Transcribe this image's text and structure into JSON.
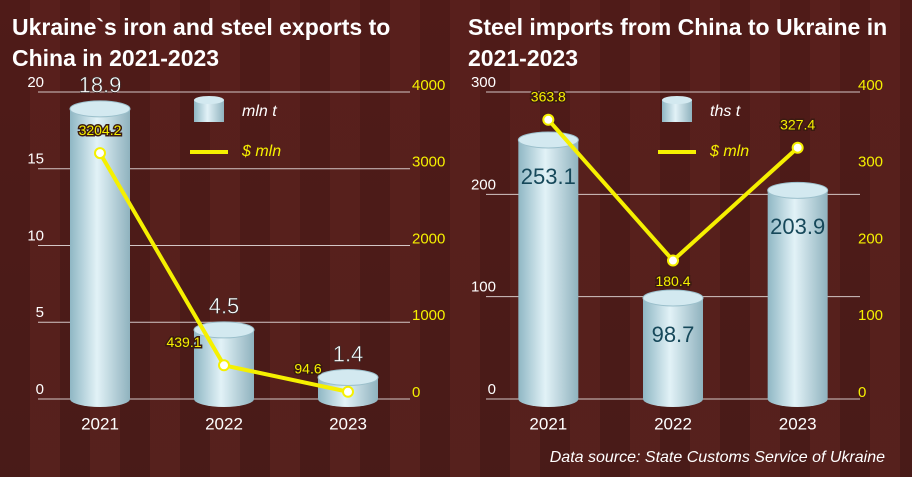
{
  "chart_data": [
    {
      "type": "bar",
      "title": "Ukraine`s iron and steel exports to China in 2021-2023",
      "categories": [
        "2021",
        "2022",
        "2023"
      ],
      "series": [
        {
          "name": "mln t",
          "color": "#bfe0ea",
          "values": [
            18.9,
            4.5,
            1.4
          ]
        },
        {
          "name": "$ mln",
          "color": "#f5f000",
          "values": [
            3204.2,
            439.1,
            94.6
          ],
          "axis": "y2",
          "type": "line"
        }
      ],
      "ylim": [
        0,
        20
      ],
      "yticks": [
        0,
        5,
        10,
        15,
        20
      ],
      "y2lim": [
        0,
        4000
      ],
      "y2ticks": [
        0,
        1000,
        2000,
        3000,
        4000
      ],
      "grid": true
    },
    {
      "type": "bar",
      "title": "Steel imports from China to Ukraine in 2021-2023",
      "categories": [
        "2021",
        "2022",
        "2023"
      ],
      "series": [
        {
          "name": "ths t",
          "color": "#bfe0ea",
          "values": [
            253.1,
            98.7,
            203.9
          ]
        },
        {
          "name": "$ mln",
          "color": "#f5f000",
          "values": [
            363.8,
            180.4,
            327.4
          ],
          "axis": "y2",
          "type": "line"
        }
      ],
      "ylim": [
        0,
        300
      ],
      "yticks": [
        0,
        100,
        200,
        300
      ],
      "y2lim": [
        0,
        400
      ],
      "y2ticks": [
        0,
        100,
        200,
        300,
        400
      ],
      "grid": true
    }
  ],
  "source": "Data source: State Customs Service of Ukraine"
}
